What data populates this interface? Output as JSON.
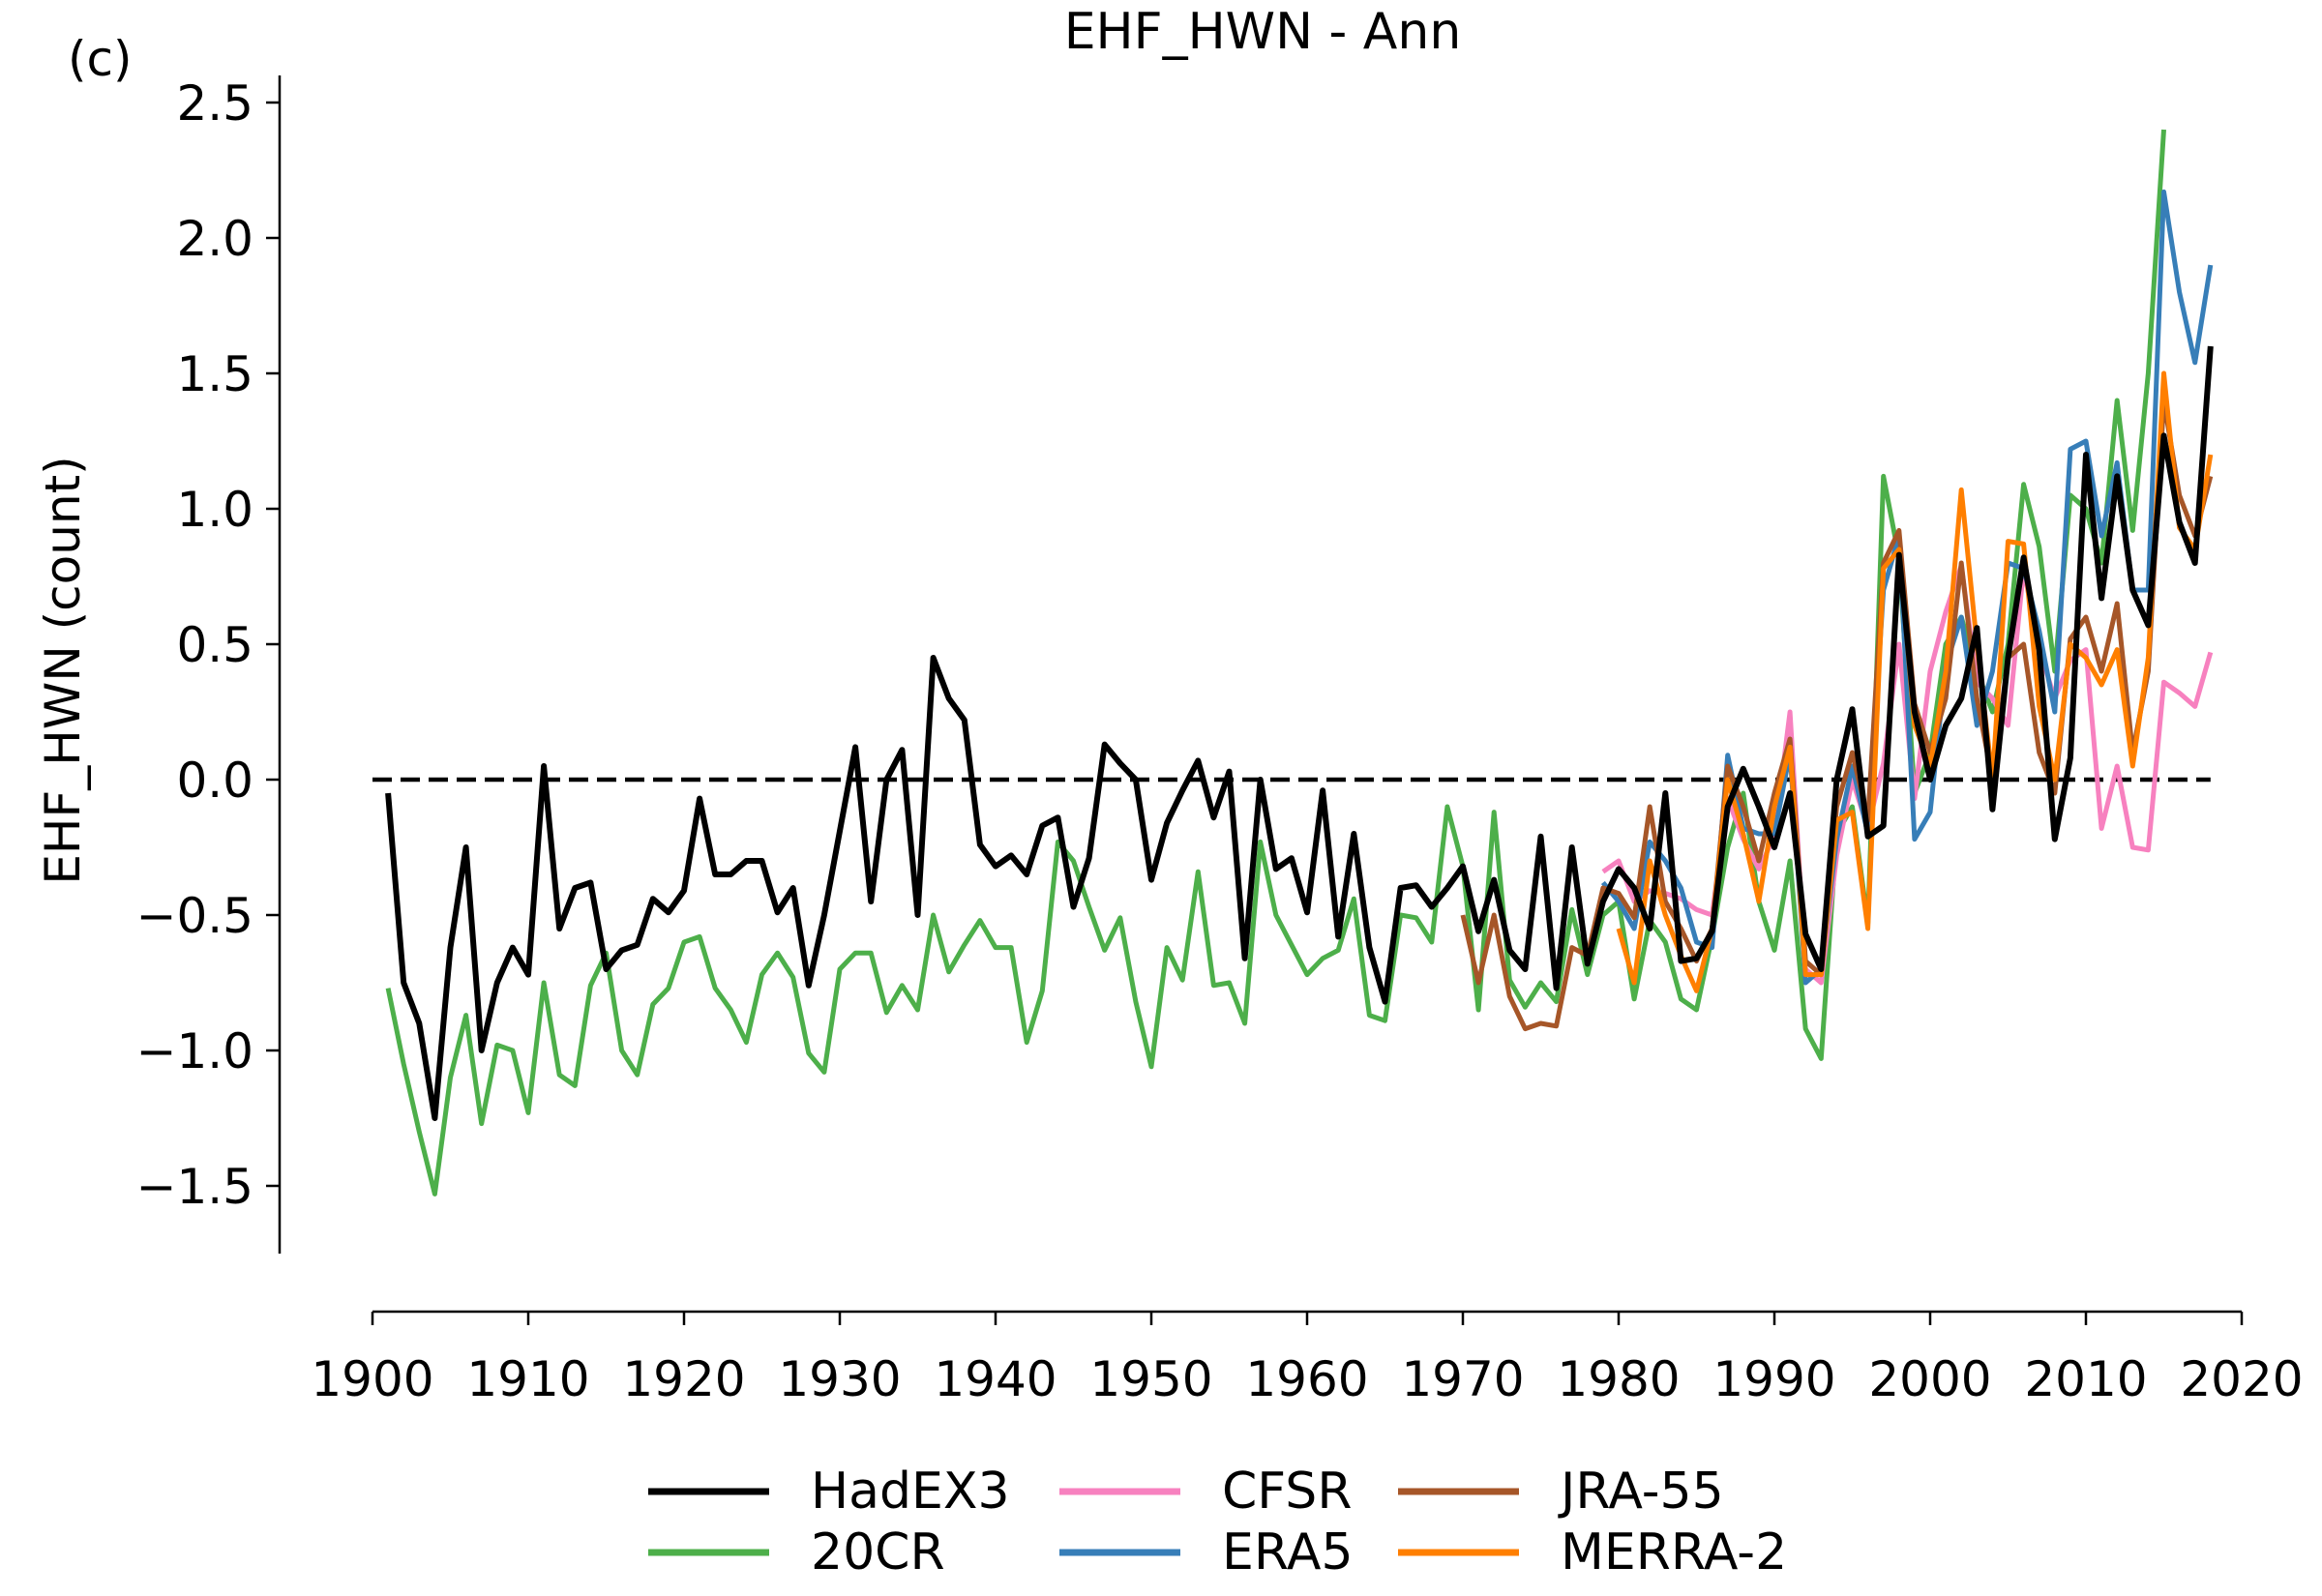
{
  "chart_data": {
    "type": "line",
    "panel_label": "(c)",
    "title": "EHF_HWN - Ann",
    "xlabel": "",
    "ylabel": "EHF_HWN (count)",
    "xlim": [
      1900,
      2020
    ],
    "ylim": [
      -1.75,
      2.6
    ],
    "xticks": [
      1900,
      1910,
      1920,
      1930,
      1940,
      1950,
      1960,
      1970,
      1980,
      1990,
      2000,
      2010,
      2020
    ],
    "yticks": [
      -1.5,
      -1.0,
      -0.5,
      0.0,
      0.5,
      1.0,
      1.5,
      2.0,
      2.5
    ],
    "ytick_labels": [
      "−1.5",
      "−1.0",
      "−0.5",
      "0.0",
      "0.5",
      "1.0",
      "1.5",
      "2.0",
      "2.5"
    ],
    "reference_line": {
      "y": 0.0,
      "style": "dashed",
      "color": "#000000"
    },
    "grid": false,
    "legend_placement": "below",
    "series": [
      {
        "name": "HadEX3",
        "color": "#000000",
        "start_year": 1901,
        "values": [
          -0.05,
          -0.75,
          -0.9,
          -1.25,
          -0.62,
          -0.25,
          -1.0,
          -0.75,
          -0.62,
          -0.72,
          0.05,
          -0.55,
          -0.4,
          -0.38,
          -0.7,
          -0.63,
          -0.61,
          -0.44,
          -0.49,
          -0.41,
          -0.07,
          -0.35,
          -0.35,
          -0.3,
          -0.3,
          -0.49,
          -0.4,
          -0.76,
          -0.5,
          -0.19,
          0.12,
          -0.45,
          0.0,
          0.11,
          -0.5,
          0.45,
          0.3,
          0.22,
          -0.24,
          -0.32,
          -0.28,
          -0.35,
          -0.17,
          -0.14,
          -0.47,
          -0.29,
          0.13,
          0.06,
          0.0,
          -0.37,
          -0.16,
          -0.04,
          0.07,
          -0.14,
          0.03,
          -0.66,
          0.0,
          -0.33,
          -0.29,
          -0.49,
          -0.04,
          -0.58,
          -0.2,
          -0.62,
          -0.82,
          -0.4,
          -0.39,
          -0.47,
          -0.4,
          -0.32,
          -0.56,
          -0.37,
          -0.63,
          -0.7,
          -0.21,
          -0.77,
          -0.25,
          -0.68,
          -0.45,
          -0.33,
          -0.4,
          -0.55,
          -0.05,
          -0.67,
          -0.66,
          -0.56,
          -0.1,
          0.04,
          -0.1,
          -0.25,
          -0.05,
          -0.57,
          -0.7,
          0.0,
          0.26,
          -0.21,
          -0.17,
          0.83,
          0.25,
          0.0,
          0.2,
          0.3,
          0.56,
          -0.11,
          0.45,
          0.82,
          0.48,
          -0.22,
          0.08,
          1.2,
          0.67,
          1.12,
          0.7,
          0.57,
          1.27,
          0.95,
          0.8,
          1.6
        ]
      },
      {
        "name": "20CR",
        "color": "#4daf4a",
        "start_year": 1901,
        "values": [
          -0.77,
          -1.05,
          -1.3,
          -1.53,
          -1.1,
          -0.87,
          -1.27,
          -0.98,
          -1.0,
          -1.23,
          -0.75,
          -1.09,
          -1.13,
          -0.76,
          -0.64,
          -1.0,
          -1.09,
          -0.83,
          -0.77,
          -0.6,
          -0.58,
          -0.77,
          -0.85,
          -0.97,
          -0.72,
          -0.64,
          -0.73,
          -1.01,
          -1.08,
          -0.7,
          -0.64,
          -0.64,
          -0.86,
          -0.76,
          -0.85,
          -0.5,
          -0.71,
          -0.61,
          -0.52,
          -0.62,
          -0.62,
          -0.97,
          -0.78,
          -0.23,
          -0.3,
          -0.47,
          -0.63,
          -0.51,
          -0.82,
          -1.06,
          -0.62,
          -0.74,
          -0.34,
          -0.76,
          -0.75,
          -0.9,
          -0.23,
          -0.5,
          -0.61,
          -0.72,
          -0.66,
          -0.63,
          -0.44,
          -0.87,
          -0.89,
          -0.5,
          -0.51,
          -0.6,
          -0.1,
          -0.32,
          -0.85,
          -0.12,
          -0.74,
          -0.84,
          -0.75,
          -0.82,
          -0.48,
          -0.72,
          -0.5,
          -0.45,
          -0.81,
          -0.52,
          -0.6,
          -0.81,
          -0.85,
          -0.58,
          -0.25,
          -0.05,
          -0.45,
          -0.63,
          -0.3,
          -0.92,
          -1.03,
          -0.2,
          -0.1,
          -0.53,
          1.12,
          0.82,
          -0.05,
          0.1,
          0.5,
          0.6,
          0.4,
          0.25,
          0.5,
          1.09,
          0.86,
          0.4,
          1.05,
          1.0,
          0.8,
          1.4,
          0.92,
          1.5,
          2.4
        ]
      },
      {
        "name": "CFSR",
        "color": "#f781bf",
        "start_year": 1979,
        "values": [
          -0.34,
          -0.3,
          -0.45,
          -0.41,
          -0.42,
          -0.44,
          -0.48,
          -0.5,
          -0.07,
          -0.22,
          -0.33,
          -0.21,
          0.25,
          -0.7,
          -0.75,
          -0.28,
          0.0,
          -0.18,
          0.06,
          0.5,
          -0.07,
          0.4,
          0.62,
          0.79,
          0.36,
          0.3,
          0.2,
          0.78,
          0.48,
          0.3,
          0.44,
          0.48,
          -0.18,
          0.05,
          -0.25,
          -0.26,
          0.36,
          0.32,
          0.27,
          0.47
        ]
      },
      {
        "name": "ERA5",
        "color": "#377eb8",
        "start_year": 1979,
        "values": [
          -0.38,
          -0.45,
          -0.55,
          -0.23,
          -0.3,
          -0.4,
          -0.6,
          -0.62,
          0.09,
          -0.18,
          -0.2,
          -0.2,
          0.1,
          -0.75,
          -0.7,
          -0.22,
          0.05,
          -0.2,
          0.7,
          0.9,
          -0.22,
          -0.12,
          0.42,
          0.6,
          0.2,
          0.4,
          0.8,
          0.78,
          0.55,
          0.25,
          1.22,
          1.25,
          0.9,
          1.17,
          0.7,
          0.7,
          2.17,
          1.8,
          1.54,
          1.9
        ]
      },
      {
        "name": "JRA-55",
        "color": "#a65628",
        "start_year": 1970,
        "values": [
          -0.5,
          -0.75,
          -0.5,
          -0.8,
          -0.92,
          -0.9,
          -0.91,
          -0.62,
          -0.65,
          -0.4,
          -0.42,
          -0.51,
          -0.1,
          -0.45,
          -0.55,
          -0.67,
          -0.55,
          0.05,
          -0.1,
          -0.3,
          -0.05,
          0.15,
          -0.67,
          -0.72,
          -0.1,
          0.1,
          -0.15,
          0.8,
          0.92,
          0.28,
          0.1,
          0.3,
          0.8,
          0.3,
          0.0,
          0.45,
          0.5,
          0.1,
          -0.05,
          0.52,
          0.6,
          0.4,
          0.65,
          0.1,
          0.4,
          1.4,
          1.05,
          0.9,
          1.12
        ]
      },
      {
        "name": "MERRA-2",
        "color": "#ff7f00",
        "start_year": 1980,
        "values": [
          -0.55,
          -0.75,
          -0.3,
          -0.5,
          -0.65,
          -0.78,
          -0.55,
          0.0,
          -0.2,
          -0.45,
          -0.1,
          0.12,
          -0.72,
          -0.72,
          -0.15,
          -0.12,
          -0.55,
          0.78,
          0.85,
          0.2,
          0.05,
          0.4,
          1.07,
          0.5,
          0.0,
          0.88,
          0.87,
          0.27,
          0.0,
          0.5,
          0.45,
          0.35,
          0.48,
          0.05,
          0.45,
          1.5,
          0.93,
          0.85,
          1.2
        ]
      }
    ]
  }
}
